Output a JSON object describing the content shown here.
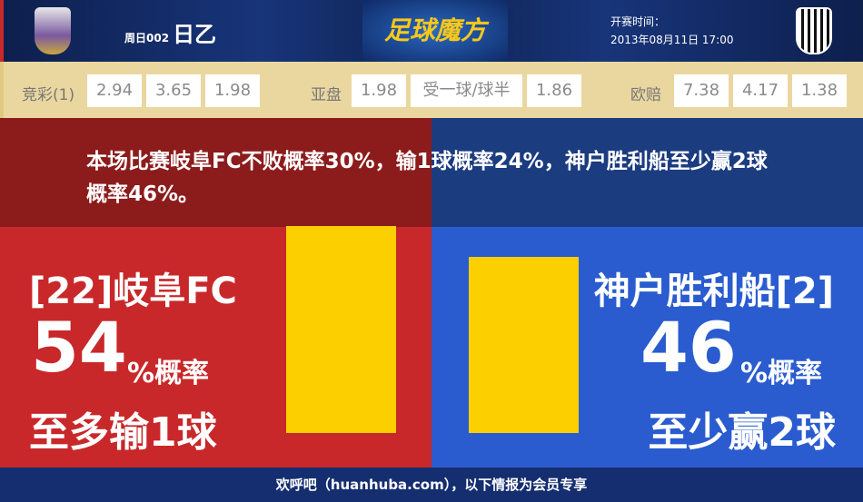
{
  "header": {
    "league_prefix": "周日002",
    "league": "日乙",
    "brand": "足球魔方",
    "kickoff_label": "开赛时间：",
    "kickoff": "2013年08月11日 17:00",
    "home_logo": "FC GIFU",
    "away_logo": "VISSEL"
  },
  "odds": {
    "jc_label": "竞彩(1)",
    "jc": [
      "2.94",
      "3.65",
      "1.98"
    ],
    "ah_label": "亚盘",
    "ah": [
      "1.98",
      "受一球/球半",
      "1.86"
    ],
    "eu_label": "欧赔",
    "eu": [
      "7.38",
      "4.17",
      "1.38"
    ]
  },
  "summary": "本场比赛岐阜FC不败概率30%，输1球概率24%，神户胜利船至少赢2球概率46%。",
  "home": {
    "team": "[22]岐阜FC",
    "percent": 54,
    "percent_text": "54",
    "unit": "%概率",
    "outcome": "至多输1球"
  },
  "away": {
    "team": "神户胜利船[2]",
    "percent": 46,
    "percent_text": "46",
    "unit": "%概率",
    "outcome": "至少赢2球"
  },
  "colors": {
    "home": "#c8282a",
    "away": "#2a5ccf",
    "bar": "#fccf00"
  },
  "footer": "欢呼吧（huanhuba.com），以下情报为会员专享"
}
